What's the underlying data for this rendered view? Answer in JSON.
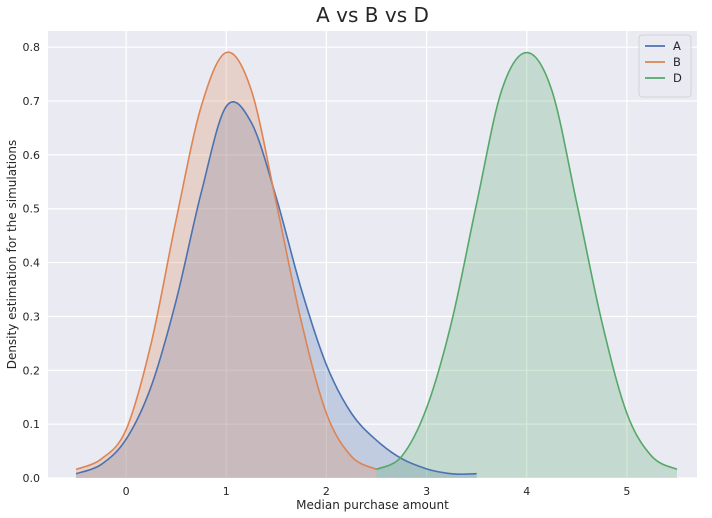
{
  "chart_data": {
    "type": "area",
    "title": "A vs B vs D",
    "xlabel": "Median purchase amount",
    "ylabel": "Density estimation for the simulations",
    "xlim": [
      -0.78,
      5.7
    ],
    "ylim": [
      0,
      0.83
    ],
    "xticks": [
      0,
      1,
      2,
      3,
      4,
      5
    ],
    "yticks": [
      0.0,
      0.1,
      0.2,
      0.3,
      0.4,
      0.5,
      0.6,
      0.7,
      0.8
    ],
    "grid": true,
    "background": "#EAEAF2",
    "legend": {
      "placement": "top-right"
    },
    "series": [
      {
        "name": "A",
        "color": "#4C72B0",
        "points": [
          [
            -0.5,
            0.008
          ],
          [
            -0.25,
            0.025
          ],
          [
            0.0,
            0.072
          ],
          [
            0.25,
            0.17
          ],
          [
            0.5,
            0.33
          ],
          [
            0.75,
            0.53
          ],
          [
            1.0,
            0.69
          ],
          [
            1.25,
            0.66
          ],
          [
            1.5,
            0.52
          ],
          [
            1.75,
            0.35
          ],
          [
            2.0,
            0.21
          ],
          [
            2.25,
            0.12
          ],
          [
            2.5,
            0.07
          ],
          [
            2.75,
            0.036
          ],
          [
            3.0,
            0.017
          ],
          [
            3.2,
            0.009
          ],
          [
            3.35,
            0.007
          ],
          [
            3.5,
            0.008
          ]
        ]
      },
      {
        "name": "B",
        "color": "#DD8452",
        "points": [
          [
            -0.5,
            0.016
          ],
          [
            -0.25,
            0.035
          ],
          [
            0.0,
            0.09
          ],
          [
            0.25,
            0.25
          ],
          [
            0.5,
            0.48
          ],
          [
            0.75,
            0.69
          ],
          [
            1.0,
            0.79
          ],
          [
            1.25,
            0.72
          ],
          [
            1.5,
            0.51
          ],
          [
            1.75,
            0.29
          ],
          [
            2.0,
            0.12
          ],
          [
            2.25,
            0.04
          ],
          [
            2.5,
            0.016
          ]
        ]
      },
      {
        "name": "D",
        "color": "#55A868",
        "points": [
          [
            2.5,
            0.016
          ],
          [
            2.75,
            0.04
          ],
          [
            3.0,
            0.13
          ],
          [
            3.25,
            0.29
          ],
          [
            3.5,
            0.51
          ],
          [
            3.75,
            0.72
          ],
          [
            4.0,
            0.79
          ],
          [
            4.25,
            0.72
          ],
          [
            4.5,
            0.51
          ],
          [
            4.75,
            0.29
          ],
          [
            5.0,
            0.12
          ],
          [
            5.25,
            0.04
          ],
          [
            5.5,
            0.016
          ]
        ]
      }
    ]
  }
}
